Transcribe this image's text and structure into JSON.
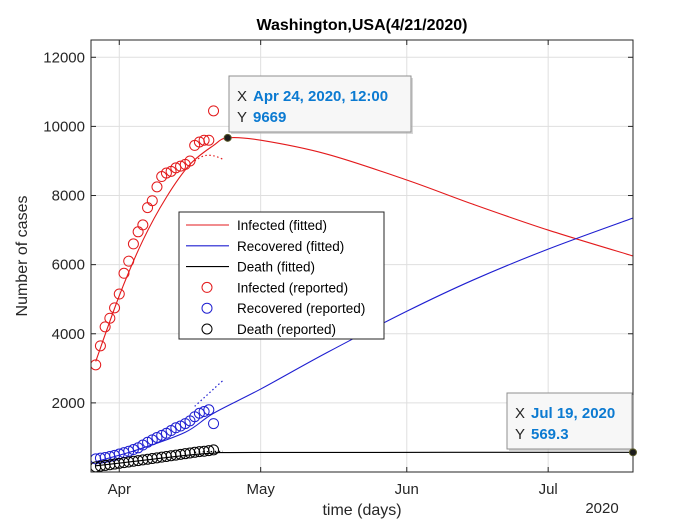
{
  "chart_data": {
    "type": "line",
    "title": "Washington,USA(4/21/2020)",
    "xlabel": "time (days)",
    "ylabel": "Number of cases",
    "x_tick_labels": [
      "Apr",
      "May",
      "Jun",
      "Jul"
    ],
    "x_ticks": [
      "2020-04-01",
      "2020-05-01",
      "2020-06-01",
      "2020-07-01"
    ],
    "x_year_label": "2020",
    "xlim": [
      "2020-03-26",
      "2020-07-19"
    ],
    "ylim": [
      0,
      12500
    ],
    "y_ticks": [
      2000,
      4000,
      6000,
      8000,
      10000,
      12000
    ],
    "y_tick_labels": [
      "2000",
      "4000",
      "6000",
      "8000",
      "10000",
      "12000"
    ],
    "grid": true,
    "legend_position": "center-left",
    "series": [
      {
        "name": "Infected (fitted)",
        "kind": "line",
        "color": "#e31a1c",
        "x": [
          "2020-03-27",
          "2020-04-01",
          "2020-04-06",
          "2020-04-11",
          "2020-04-16",
          "2020-04-21",
          "2020-04-24",
          "2020-05-01",
          "2020-05-15",
          "2020-06-01",
          "2020-06-15",
          "2020-07-01",
          "2020-07-19"
        ],
        "y": [
          3200,
          5100,
          6700,
          7950,
          8900,
          9450,
          9669,
          9600,
          9200,
          8450,
          7750,
          7000,
          6250
        ]
      },
      {
        "name": "Recovered (fitted)",
        "kind": "line",
        "color": "#1f1fd1",
        "x": [
          "2020-03-27",
          "2020-04-05",
          "2020-04-15",
          "2020-04-21",
          "2020-05-01",
          "2020-05-15",
          "2020-06-01",
          "2020-06-15",
          "2020-07-01",
          "2020-07-19"
        ],
        "y": [
          300,
          650,
          1150,
          1700,
          2400,
          3450,
          4650,
          5550,
          6450,
          7350
        ]
      },
      {
        "name": "Death (fitted)",
        "kind": "line",
        "color": "#000000",
        "x": [
          "2020-03-27",
          "2020-04-05",
          "2020-04-15",
          "2020-04-21",
          "2020-05-01",
          "2020-07-19"
        ],
        "y": [
          180,
          320,
          480,
          545,
          565,
          569.3
        ]
      },
      {
        "name": "Infected (reported)",
        "kind": "scatter",
        "color": "#e31a1c",
        "x": [
          "2020-03-27",
          "2020-03-28",
          "2020-03-29",
          "2020-03-30",
          "2020-03-31",
          "2020-04-01",
          "2020-04-02",
          "2020-04-03",
          "2020-04-04",
          "2020-04-05",
          "2020-04-06",
          "2020-04-07",
          "2020-04-08",
          "2020-04-09",
          "2020-04-10",
          "2020-04-11",
          "2020-04-12",
          "2020-04-13",
          "2020-04-14",
          "2020-04-15",
          "2020-04-16",
          "2020-04-17",
          "2020-04-18",
          "2020-04-19",
          "2020-04-20",
          "2020-04-21"
        ],
        "y": [
          3100,
          3650,
          4200,
          4450,
          4750,
          5150,
          5750,
          6100,
          6600,
          6950,
          7150,
          7650,
          7850,
          8250,
          8550,
          8650,
          8700,
          8800,
          8850,
          8900,
          9000,
          9450,
          9550,
          9600,
          9600,
          10450
        ]
      },
      {
        "name": "Recovered (reported)",
        "kind": "scatter",
        "color": "#1f1fd1",
        "x": [
          "2020-03-27",
          "2020-03-28",
          "2020-03-29",
          "2020-03-30",
          "2020-03-31",
          "2020-04-01",
          "2020-04-02",
          "2020-04-03",
          "2020-04-04",
          "2020-04-05",
          "2020-04-06",
          "2020-04-07",
          "2020-04-08",
          "2020-04-09",
          "2020-04-10",
          "2020-04-11",
          "2020-04-12",
          "2020-04-13",
          "2020-04-14",
          "2020-04-15",
          "2020-04-16",
          "2020-04-17",
          "2020-04-18",
          "2020-04-19",
          "2020-04-20",
          "2020-04-21"
        ],
        "y": [
          380,
          400,
          420,
          450,
          480,
          520,
          560,
          600,
          650,
          700,
          780,
          860,
          930,
          1000,
          1060,
          1120,
          1200,
          1280,
          1330,
          1400,
          1480,
          1600,
          1700,
          1750,
          1800,
          1400
        ]
      },
      {
        "name": "Death  (reported)",
        "kind": "scatter",
        "color": "#000000",
        "x": [
          "2020-03-27",
          "2020-03-28",
          "2020-03-29",
          "2020-03-30",
          "2020-03-31",
          "2020-04-01",
          "2020-04-02",
          "2020-04-03",
          "2020-04-04",
          "2020-04-05",
          "2020-04-06",
          "2020-04-07",
          "2020-04-08",
          "2020-04-09",
          "2020-04-10",
          "2020-04-11",
          "2020-04-12",
          "2020-04-13",
          "2020-04-14",
          "2020-04-15",
          "2020-04-16",
          "2020-04-17",
          "2020-04-18",
          "2020-04-19",
          "2020-04-20",
          "2020-04-21"
        ],
        "y": [
          150,
          170,
          190,
          210,
          230,
          250,
          270,
          290,
          310,
          330,
          350,
          370,
          390,
          410,
          430,
          450,
          470,
          490,
          510,
          530,
          550,
          570,
          590,
          600,
          620,
          640
        ]
      }
    ],
    "dotted_projections": [
      {
        "color": "#e31a1c",
        "x": [
          "2020-04-17",
          "2020-04-19",
          "2020-04-21",
          "2020-04-23"
        ],
        "y": [
          9000,
          9150,
          9150,
          9050
        ]
      },
      {
        "color": "#1f1fd1",
        "x": [
          "2020-04-17",
          "2020-04-19",
          "2020-04-21",
          "2020-04-23"
        ],
        "y": [
          1900,
          2150,
          2400,
          2650
        ]
      },
      {
        "color": "#000000",
        "x": [
          "2020-04-17",
          "2020-04-20",
          "2020-04-23"
        ],
        "y": [
          570,
          590,
          600
        ]
      }
    ],
    "datatips": [
      {
        "x_label": "X",
        "x_value": "Apr 24, 2020, 12:00",
        "y_label": "Y",
        "y_value": "9669",
        "x": "2020-04-24",
        "y": 9669
      },
      {
        "x_label": "X",
        "x_value": "Jul 19, 2020",
        "y_label": "Y",
        "y_value": "569.3",
        "x": "2020-07-19",
        "y": 569.3
      }
    ]
  }
}
